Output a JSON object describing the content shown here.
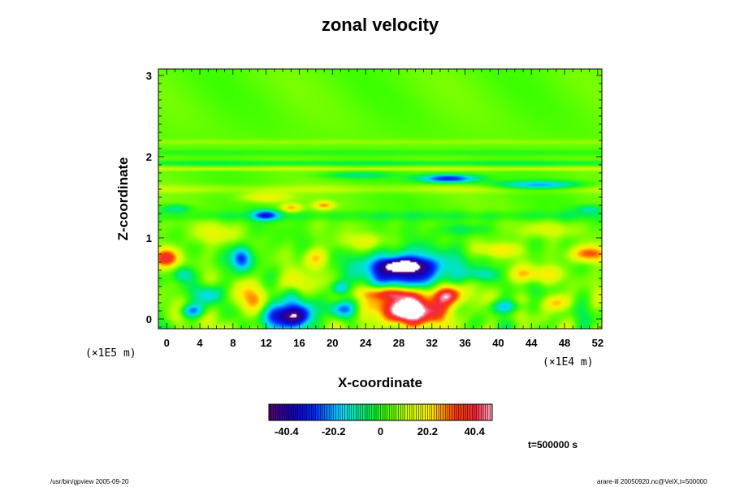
{
  "chart_data": {
    "type": "heatmap",
    "title": "zonal velocity",
    "xlabel": "X-coordinate",
    "ylabel": "Z-coordinate",
    "x_scale_note": "(×1E4 m)",
    "y_scale_note": "(×1E5 m)",
    "x_ticks": [
      "0",
      "4",
      "8",
      "12",
      "16",
      "20",
      "24",
      "28",
      "32",
      "36",
      "40",
      "44",
      "48",
      "52"
    ],
    "y_ticks": [
      "0",
      "1",
      "2",
      "3"
    ],
    "xlim": [
      -1,
      52.5
    ],
    "ylim": [
      -0.12,
      3.08
    ],
    "colorbar": {
      "range": [
        -48,
        48
      ],
      "tick_labels": [
        "-40.4",
        "-20.2",
        "0",
        "20.2",
        "40.4"
      ],
      "tick_values": [
        -40.4,
        -20.2,
        0,
        20.2,
        40.4
      ]
    },
    "time_label": "t=500000 s",
    "features": [
      {
        "x": 29,
        "y": 0.6,
        "sx": 5.5,
        "sy": 0.22,
        "v": -45
      },
      {
        "x": 28.5,
        "y": 0.66,
        "sx": 2.5,
        "sy": 0.08,
        "v": -30
      },
      {
        "x": 15,
        "y": 0.04,
        "sx": 2.6,
        "sy": 0.15,
        "v": -55
      },
      {
        "x": 15,
        "y": 0.32,
        "sx": 1.2,
        "sy": 0.18,
        "v": -25
      },
      {
        "x": 29.5,
        "y": 0.12,
        "sx": 4.2,
        "sy": 0.2,
        "v": 58
      },
      {
        "x": 27,
        "y": 0.32,
        "sx": 3.5,
        "sy": 0.08,
        "v": 28
      },
      {
        "x": 34,
        "y": 0.3,
        "sx": 1.8,
        "sy": 0.12,
        "v": 35
      },
      {
        "x": 21,
        "y": 0.12,
        "sx": 1.8,
        "sy": 0.1,
        "v": -25
      },
      {
        "x": 21,
        "y": 0.38,
        "sx": 1,
        "sy": 0.08,
        "v": -22
      },
      {
        "x": 15.5,
        "y": 0.42,
        "sx": 1.8,
        "sy": 0.15,
        "v": 28
      },
      {
        "x": 34,
        "y": 1.73,
        "sx": 3.5,
        "sy": 0.05,
        "v": -38
      },
      {
        "x": 45,
        "y": 1.65,
        "sx": 5,
        "sy": 0.05,
        "v": -25
      },
      {
        "x": 23,
        "y": 1.77,
        "sx": 4,
        "sy": 0.04,
        "v": -12
      },
      {
        "x": 0,
        "y": 0.75,
        "sx": 1.6,
        "sy": 0.12,
        "v": 32
      },
      {
        "x": 51,
        "y": 0.8,
        "sx": 2.5,
        "sy": 0.1,
        "v": 28
      },
      {
        "x": 9,
        "y": 0.75,
        "sx": 1.2,
        "sy": 0.15,
        "v": -35
      },
      {
        "x": 10,
        "y": 0.25,
        "sx": 1.8,
        "sy": 0.2,
        "v": 22
      },
      {
        "x": 5,
        "y": 0.3,
        "sx": 1.5,
        "sy": 0.12,
        "v": -22
      },
      {
        "x": 3,
        "y": 0.1,
        "sx": 1.5,
        "sy": 0.08,
        "v": -25
      },
      {
        "x": 12,
        "y": 1.28,
        "sx": 1.5,
        "sy": 0.06,
        "v": -32
      },
      {
        "x": 15,
        "y": 1.37,
        "sx": 1.2,
        "sy": 0.05,
        "v": 22
      },
      {
        "x": 19,
        "y": 1.4,
        "sx": 1.2,
        "sy": 0.05,
        "v": 22
      },
      {
        "x": 12,
        "y": 1.5,
        "sx": 3,
        "sy": 0.06,
        "v": 16
      },
      {
        "x": 47,
        "y": 0.2,
        "sx": 2,
        "sy": 0.1,
        "v": 22
      },
      {
        "x": 41,
        "y": 0.15,
        "sx": 2,
        "sy": 0.08,
        "v": -22
      },
      {
        "x": 44,
        "y": 0.55,
        "sx": 3,
        "sy": 0.1,
        "v": 20
      },
      {
        "x": 38,
        "y": 0.55,
        "sx": 2,
        "sy": 0.08,
        "v": -15
      },
      {
        "x": 40,
        "y": 0.85,
        "sx": 2.5,
        "sy": 0.08,
        "v": 16
      },
      {
        "x": 2,
        "y": 0.55,
        "sx": 1.2,
        "sy": 0.1,
        "v": -20
      },
      {
        "x": 46,
        "y": 1.1,
        "sx": 4,
        "sy": 0.1,
        "v": 10
      },
      {
        "x": 1,
        "y": 1.36,
        "sx": 2,
        "sy": 0.05,
        "v": -15
      },
      {
        "x": 51,
        "y": 1.35,
        "sx": 1.5,
        "sy": 0.05,
        "v": -15
      },
      {
        "x": 6,
        "y": 1.05,
        "sx": 2.5,
        "sy": 0.12,
        "v": 12
      },
      {
        "x": 24,
        "y": 0.95,
        "sx": 3,
        "sy": 0.1,
        "v": 10
      },
      {
        "x": 18,
        "y": 0.75,
        "sx": 1.5,
        "sy": 0.12,
        "v": 18
      },
      {
        "x": 36,
        "y": 1.1,
        "sx": 3,
        "sy": 0.08,
        "v": -10
      }
    ],
    "bands": [
      {
        "y": 1.92,
        "w": 0.025,
        "v": -9
      },
      {
        "y": 1.85,
        "w": 0.02,
        "v": 10
      },
      {
        "y": 2.05,
        "w": 0.03,
        "v": -5
      },
      {
        "y": 2.18,
        "w": 0.035,
        "v": 4
      },
      {
        "y": 1.6,
        "w": 0.05,
        "v": 6
      },
      {
        "y": 1.27,
        "w": 0.06,
        "v": -6
      }
    ]
  },
  "footer": {
    "left": "/usr/bin/gpview 2005-09-20",
    "right": "arare-ill 20050920.nc@VelX,t=500000"
  }
}
